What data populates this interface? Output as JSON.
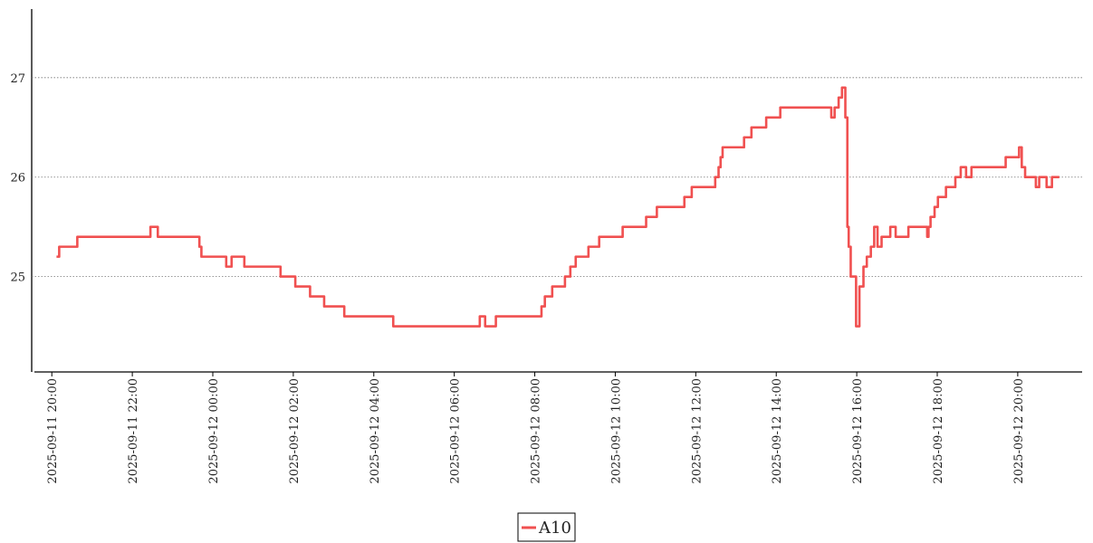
{
  "chart_data": {
    "type": "line",
    "drawstyle": "steps-post",
    "grid": true,
    "legend": "lower center",
    "xlim": [
      "2025-09-11 19:30",
      "2025-09-12 21:36"
    ],
    "xticks": [
      "2025-09-11 20:00",
      "2025-09-11 22:00",
      "2025-09-12 00:00",
      "2025-09-12 02:00",
      "2025-09-12 04:00",
      "2025-09-12 06:00",
      "2025-09-12 08:00",
      "2025-09-12 10:00",
      "2025-09-12 12:00",
      "2025-09-12 14:00",
      "2025-09-12 16:00",
      "2025-09-12 18:00",
      "2025-09-12 20:00"
    ],
    "ylim": [
      24.05,
      27.69
    ],
    "yticks": [
      25,
      26,
      27
    ],
    "x": [
      "2025-09-11 20:07",
      "2025-09-11 20:11",
      "2025-09-11 20:38",
      "2025-09-11 22:27",
      "2025-09-11 22:38",
      "2025-09-11 23:40",
      "2025-09-11 23:43",
      "2025-09-12 00:20",
      "2025-09-12 00:28",
      "2025-09-12 00:47",
      "2025-09-12 01:41",
      "2025-09-12 02:03",
      "2025-09-12 02:25",
      "2025-09-12 02:46",
      "2025-09-12 03:16",
      "2025-09-12 04:29",
      "2025-09-12 06:38",
      "2025-09-12 06:46",
      "2025-09-12 07:02",
      "2025-09-12 08:10",
      "2025-09-12 08:15",
      "2025-09-12 08:26",
      "2025-09-12 08:45",
      "2025-09-12 08:53",
      "2025-09-12 09:01",
      "2025-09-12 09:20",
      "2025-09-12 09:36",
      "2025-09-12 10:11",
      "2025-09-12 10:46",
      "2025-09-12 11:02",
      "2025-09-12 11:43",
      "2025-09-12 11:54",
      "2025-09-12 12:29",
      "2025-09-12 12:34",
      "2025-09-12 12:37",
      "2025-09-12 12:40",
      "2025-09-12 13:12",
      "2025-09-12 13:23",
      "2025-09-12 13:45",
      "2025-09-12 14:06",
      "2025-09-12 15:22",
      "2025-09-12 15:27",
      "2025-09-12 15:33",
      "2025-09-12 15:38",
      "2025-09-12 15:43",
      "2025-09-12 15:46",
      "2025-09-12 15:48",
      "2025-09-12 15:51",
      "2025-09-12 15:59",
      "2025-09-12 16:04",
      "2025-09-12 16:10",
      "2025-09-12 16:15",
      "2025-09-12 16:21",
      "2025-09-12 16:26",
      "2025-09-12 16:31",
      "2025-09-12 16:37",
      "2025-09-12 16:50",
      "2025-09-12 16:58",
      "2025-09-12 17:17",
      "2025-09-12 17:45",
      "2025-09-12 17:47",
      "2025-09-12 17:50",
      "2025-09-12 17:56",
      "2025-09-12 18:01",
      "2025-09-12 18:13",
      "2025-09-12 18:27",
      "2025-09-12 18:35",
      "2025-09-12 18:43",
      "2025-09-12 18:51",
      "2025-09-12 19:42",
      "2025-09-12 20:02",
      "2025-09-12 20:06",
      "2025-09-12 20:11",
      "2025-09-12 20:27",
      "2025-09-12 20:32",
      "2025-09-12 20:43",
      "2025-09-12 20:51",
      "2025-09-12 21:02"
    ],
    "series": [
      {
        "name": "A10",
        "color": "#f05050",
        "values": [
          25.2,
          25.3,
          25.4,
          25.5,
          25.4,
          25.3,
          25.2,
          25.1,
          25.2,
          25.1,
          25.0,
          24.9,
          24.8,
          24.7,
          24.6,
          24.5,
          24.6,
          24.5,
          24.6,
          24.7,
          24.8,
          24.9,
          25.0,
          25.1,
          25.2,
          25.3,
          25.4,
          25.5,
          25.6,
          25.7,
          25.8,
          25.9,
          26.0,
          26.1,
          26.2,
          26.3,
          26.4,
          26.5,
          26.6,
          26.7,
          26.6,
          26.7,
          26.8,
          26.9,
          26.6,
          25.5,
          25.3,
          25.0,
          24.5,
          24.9,
          25.1,
          25.2,
          25.3,
          25.5,
          25.3,
          25.4,
          25.5,
          25.4,
          25.5,
          25.4,
          25.5,
          25.6,
          25.7,
          25.8,
          25.9,
          26.0,
          26.1,
          26.0,
          26.1,
          26.2,
          26.3,
          26.1,
          26.0,
          25.9,
          26.0,
          25.9,
          26.0,
          26.0
        ]
      }
    ]
  }
}
